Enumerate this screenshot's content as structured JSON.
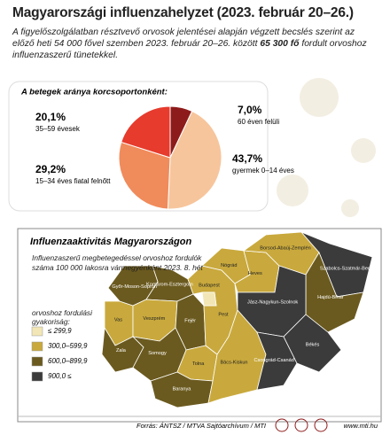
{
  "header": {
    "title": "Magyarországi influenzahelyzet (2023. február 20–26.)",
    "intro_before": "A figyelőszolgálatban résztvevő orvosok jelentései alapján végzett becslés szerint az előző heti 54 000 fővel szemben 2023. február 20–26. között",
    "intro_bold": "65 300 fő",
    "intro_after": "fordult orvoshoz influenzaszerű tünetekkel."
  },
  "chart_data": {
    "type": "pie",
    "title": "A betegek aránya korcsoportonként:",
    "categories": [
      "60 éven felüli",
      "gyermek 0–14 éves",
      "15–34 éves fiatal felnőtt",
      "35–59 évesek"
    ],
    "values": [
      7.0,
      43.7,
      29.2,
      20.1
    ],
    "value_labels": [
      "7,0%",
      "43,7%",
      "29,2%",
      "20,1%"
    ],
    "colors": [
      "#8e1b1b",
      "#f7c59c",
      "#f08b5b",
      "#e63b2d"
    ]
  },
  "map": {
    "title": "Influenzaaktivitás Magyarországon",
    "subtitle": "Influenzaszerű megbetegedéssel orvoshoz fordulók száma 100 000 lakosra vármegyénként 2023. 8. hét",
    "legend_title": "orvoshoz fordulási gyakoriság:",
    "levels": [
      {
        "label": "≤ 299,9",
        "color": "#f2e6b6"
      },
      {
        "label": "300,0–599,9",
        "color": "#c9a93d"
      },
      {
        "label": "600,0–899,9",
        "color": "#6b5a1f"
      },
      {
        "label": "900,0 ≤",
        "color": "#3b3b3b"
      }
    ],
    "counties": [
      {
        "name": "Vas",
        "level": 1
      },
      {
        "name": "Győr-Moson-Sopron",
        "level": 2
      },
      {
        "name": "Komárom-Esztergom",
        "level": 2
      },
      {
        "name": "Veszprém",
        "level": 1
      },
      {
        "name": "Zala",
        "level": 2
      },
      {
        "name": "Fejér",
        "level": 2
      },
      {
        "name": "Somogy",
        "level": 2
      },
      {
        "name": "Tolna",
        "level": 1
      },
      {
        "name": "Baranya",
        "level": 2
      },
      {
        "name": "Pest",
        "level": 1
      },
      {
        "name": "Budapest",
        "level": 0
      },
      {
        "name": "Nógrád",
        "level": 1
      },
      {
        "name": "Heves",
        "level": 1
      },
      {
        "name": "Borsod-Abaúj-Zemplén",
        "level": 1
      },
      {
        "name": "Szabolcs-Szatmár-Bereg",
        "level": 3
      },
      {
        "name": "Hajdú-Bihar",
        "level": 2
      },
      {
        "name": "Jász-Nagykun-Szolnok",
        "level": 3
      },
      {
        "name": "Bács-Kiskun",
        "level": 1
      },
      {
        "name": "Csongrád-Csanád",
        "level": 3
      },
      {
        "name": "Békés",
        "level": 3
      }
    ]
  },
  "footer": {
    "source": "Forrás: ÁNTSZ / MTVA Sajtóarchívum / MTI",
    "url": "www.mti.hu"
  }
}
